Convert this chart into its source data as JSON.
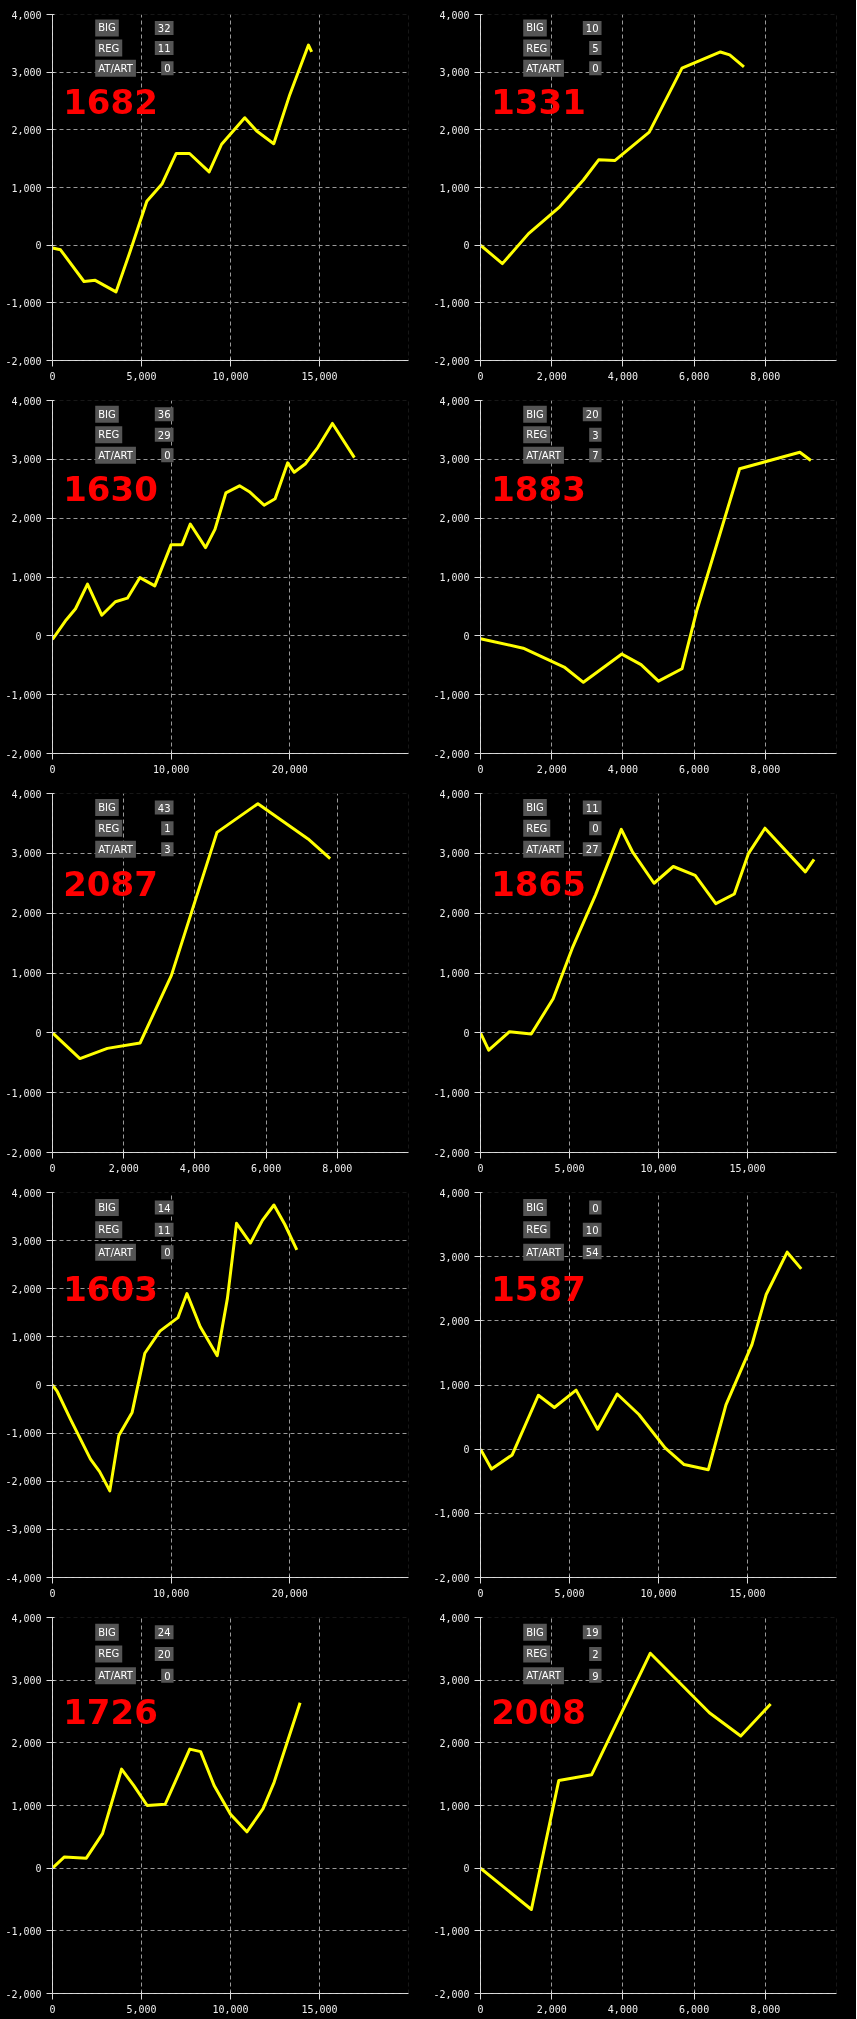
{
  "chart_data": [
    {
      "type": "line",
      "annotations": [
        "BIG",
        "32",
        "REG",
        "11",
        "AT/ART",
        "0",
        "1682"
      ],
      "xlim": [
        0,
        20000
      ],
      "ylim": [
        -2000,
        4000
      ],
      "xticks": [
        0,
        {
          "value": 5000,
          "label": "5,000"
        },
        {
          "value": 10000,
          "label": "10,000"
        },
        {
          "value": 15000,
          "label": "15,000"
        }
      ],
      "yticks": [
        {
          "value": -2000,
          "label": "-2,000"
        },
        {
          "value": -1000,
          "label": "-1,000"
        },
        0,
        {
          "value": 1000,
          "label": "1,000"
        },
        {
          "value": 2000,
          "label": "2,000"
        },
        {
          "value": 3000,
          "label": "3,000"
        },
        {
          "value": 4000,
          "label": "4,000"
        }
      ],
      "grid": true,
      "line_style": "solid",
      "series": [
        {
          "color": "#ffff00",
          "x": [
            0,
            450,
            1770,
            2400,
            3570,
            4350,
            5300,
            6150,
            6950,
            7700,
            8800,
            9500,
            10800,
            11470,
            12430,
            13330,
            14380,
            14560
          ],
          "values": [
            -50,
            -80,
            -630,
            -610,
            -810,
            -120,
            760,
            1060,
            1590,
            1590,
            1270,
            1750,
            2210,
            1980,
            1760,
            2610,
            3470,
            3350
          ]
        }
      ]
    },
    {
      "type": "line",
      "annotations": [
        "BIG",
        "10",
        "REG",
        "5",
        "AT/ART",
        "0",
        "1331"
      ],
      "xlim": [
        0,
        10000
      ],
      "ylim": [
        -2000,
        4000
      ],
      "xticks": [
        0,
        {
          "value": 2000,
          "label": "2,000"
        },
        {
          "value": 4000,
          "label": "4,000"
        },
        {
          "value": 6000,
          "label": "6,000"
        },
        {
          "value": 8000,
          "label": "8,000"
        }
      ],
      "yticks": [
        {
          "value": -2000,
          "label": "-2,000"
        },
        {
          "value": -1000,
          "label": "-1,000"
        },
        0,
        {
          "value": 1000,
          "label": "1,000"
        },
        {
          "value": 2000,
          "label": "2,000"
        },
        {
          "value": 3000,
          "label": "3,000"
        },
        {
          "value": 4000,
          "label": "4,000"
        }
      ],
      "grid": true,
      "line_style": "solid",
      "series": [
        {
          "color": "#ffff00",
          "x": [
            0,
            615,
            1350,
            2200,
            2890,
            3320,
            3780,
            4740,
            5660,
            6740,
            7000,
            7400
          ],
          "values": [
            0,
            -320,
            200,
            650,
            1130,
            1480,
            1470,
            1960,
            3070,
            3350,
            3300,
            3090
          ]
        }
      ]
    },
    {
      "type": "line",
      "annotations": [
        "BIG",
        "36",
        "REG",
        "29",
        "AT/ART",
        "0",
        "1630"
      ],
      "xlim": [
        0,
        30000
      ],
      "ylim": [
        -2000,
        4000
      ],
      "xticks": [
        0,
        {
          "value": 10000,
          "label": "10,000"
        },
        {
          "value": 20000,
          "label": "20,000"
        }
      ],
      "yticks": [
        {
          "value": -2000,
          "label": "-2,000"
        },
        {
          "value": -1000,
          "label": "-1,000"
        },
        0,
        {
          "value": 1000,
          "label": "1,000"
        },
        {
          "value": 2000,
          "label": "2,000"
        },
        {
          "value": 3000,
          "label": "3,000"
        },
        {
          "value": 4000,
          "label": "4,000"
        }
      ],
      "grid": true,
      "line_style": "solid",
      "series": [
        {
          "color": "#ffff00",
          "x": [
            0,
            1150,
            1940,
            2950,
            4150,
            5300,
            6310,
            7370,
            8620,
            10000,
            10920,
            11610,
            12900,
            13690,
            14610,
            15760,
            16590,
            17830,
            18760,
            19820,
            20370,
            21290,
            22350,
            23590,
            25440
          ],
          "values": [
            -60,
            270,
            460,
            880,
            350,
            580,
            640,
            990,
            850,
            1550,
            1550,
            1900,
            1500,
            1810,
            2430,
            2550,
            2450,
            2220,
            2330,
            2940,
            2780,
            2920,
            3200,
            3610,
            3030
          ]
        }
      ]
    },
    {
      "type": "line",
      "annotations": [
        "BIG",
        "20",
        "REG",
        "3",
        "AT/ART",
        "7",
        "1883"
      ],
      "xlim": [
        0,
        10000
      ],
      "ylim": [
        -2000,
        4000
      ],
      "xticks": [
        0,
        {
          "value": 2000,
          "label": "2,000"
        },
        {
          "value": 4000,
          "label": "4,000"
        },
        {
          "value": 6000,
          "label": "6,000"
        },
        {
          "value": 8000,
          "label": "8,000"
        }
      ],
      "yticks": [
        {
          "value": -2000,
          "label": "-2,000"
        },
        {
          "value": -1000,
          "label": "-1,000"
        },
        0,
        {
          "value": 1000,
          "label": "1,000"
        },
        {
          "value": 2000,
          "label": "2,000"
        },
        {
          "value": 3000,
          "label": "3,000"
        },
        {
          "value": 4000,
          "label": "4,000"
        }
      ],
      "grid": true,
      "line_style": "solid",
      "series": [
        {
          "color": "#ffff00",
          "x": [
            0,
            1200,
            2350,
            2890,
            3970,
            4510,
            5000,
            5660,
            6080,
            7280,
            8970,
            9280
          ],
          "values": [
            -50,
            -210,
            -530,
            -790,
            -310,
            -490,
            -770,
            -560,
            440,
            2840,
            3120,
            2980
          ]
        }
      ]
    },
    {
      "type": "line",
      "annotations": [
        "BIG",
        "43",
        "REG",
        "1",
        "AT/ART",
        "3",
        "2087"
      ],
      "xlim": [
        0,
        10000
      ],
      "ylim": [
        -2000,
        4000
      ],
      "xticks": [
        0,
        {
          "value": 2000,
          "label": "2,000"
        },
        {
          "value": 4000,
          "label": "4,000"
        },
        {
          "value": 6000,
          "label": "6,000"
        },
        {
          "value": 8000,
          "label": "8,000"
        }
      ],
      "yticks": [
        {
          "value": -2000,
          "label": "-2,000"
        },
        {
          "value": -1000,
          "label": "-1,000"
        },
        0,
        {
          "value": 1000,
          "label": "1,000"
        },
        {
          "value": 2000,
          "label": "2,000"
        },
        {
          "value": 3000,
          "label": "3,000"
        },
        {
          "value": 4000,
          "label": "4,000"
        }
      ],
      "grid": true,
      "line_style": "solid",
      "series": [
        {
          "color": "#ffff00",
          "x": [
            0,
            770,
            1540,
            2460,
            3340,
            4620,
            5770,
            7180,
            7800
          ],
          "values": [
            0,
            -430,
            -260,
            -170,
            960,
            3350,
            3830,
            3240,
            2910
          ]
        }
      ]
    },
    {
      "type": "line",
      "annotations": [
        "BIG",
        "11",
        "REG",
        "0",
        "AT/ART",
        "27",
        "1865"
      ],
      "xlim": [
        0,
        20000
      ],
      "ylim": [
        -2000,
        4000
      ],
      "xticks": [
        0,
        {
          "value": 5000,
          "label": "5,000"
        },
        {
          "value": 10000,
          "label": "10,000"
        },
        {
          "value": 15000,
          "label": "15,000"
        }
      ],
      "yticks": [
        {
          "value": -2000,
          "label": "-2,000"
        },
        {
          "value": -1000,
          "label": "-1,000"
        },
        0,
        {
          "value": 1000,
          "label": "1,000"
        },
        {
          "value": 2000,
          "label": "2,000"
        },
        {
          "value": 3000,
          "label": "3,000"
        },
        {
          "value": 4000,
          "label": "4,000"
        }
      ],
      "grid": true,
      "line_style": "solid",
      "series": [
        {
          "color": "#ffff00",
          "x": [
            0,
            460,
            1630,
            2850,
            4080,
            5150,
            6470,
            7910,
            8530,
            9750,
            10830,
            12060,
            13220,
            14260,
            15060,
            15980,
            18250,
            18740
          ],
          "values": [
            0,
            -290,
            20,
            -20,
            570,
            1410,
            2310,
            3400,
            3030,
            2500,
            2780,
            2630,
            2160,
            2320,
            3000,
            3420,
            2690,
            2900
          ]
        }
      ]
    },
    {
      "type": "line",
      "annotations": [
        "BIG",
        "14",
        "REG",
        "11",
        "AT/ART",
        "0",
        "1603"
      ],
      "xlim": [
        0,
        30000
      ],
      "ylim": [
        -4000,
        4000
      ],
      "xticks": [
        0,
        {
          "value": 10000,
          "label": "10,000"
        },
        {
          "value": 20000,
          "label": "20,000"
        }
      ],
      "yticks": [
        {
          "value": -4000,
          "label": "-4,000"
        },
        {
          "value": -3000,
          "label": "-3,000"
        },
        {
          "value": -2000,
          "label": "-2,000"
        },
        {
          "value": -1000,
          "label": "-1,000"
        },
        0,
        {
          "value": 1000,
          "label": "1,000"
        },
        {
          "value": 2000,
          "label": "2,000"
        },
        {
          "value": 3000,
          "label": "3,000"
        },
        {
          "value": 4000,
          "label": "4,000"
        }
      ],
      "grid": true,
      "line_style": "solid",
      "series": [
        {
          "color": "#ffff00",
          "x": [
            0,
            410,
            1530,
            3200,
            3970,
            4830,
            5590,
            6710,
            7780,
            9050,
            10570,
            11330,
            12450,
            13880,
            14740,
            15510,
            16680,
            17690,
            18660,
            19570,
            20590
          ],
          "values": [
            0,
            -140,
            -720,
            -1540,
            -1800,
            -2200,
            -1050,
            -570,
            660,
            1120,
            1400,
            1900,
            1210,
            610,
            1800,
            3360,
            2950,
            3420,
            3740,
            3340,
            2810
          ]
        }
      ]
    },
    {
      "type": "line",
      "annotations": [
        "BIG",
        "0",
        "REG",
        "10",
        "AT/ART",
        "54",
        "1587"
      ],
      "xlim": [
        0,
        20000
      ],
      "ylim": [
        -2000,
        4000
      ],
      "xticks": [
        0,
        {
          "value": 5000,
          "label": "5,000"
        },
        {
          "value": 10000,
          "label": "10,000"
        },
        {
          "value": 15000,
          "label": "15,000"
        }
      ],
      "yticks": [
        {
          "value": -2000,
          "label": "-2,000"
        },
        {
          "value": -1000,
          "label": "-1,000"
        },
        0,
        {
          "value": 1000,
          "label": "1,000"
        },
        {
          "value": 2000,
          "label": "2,000"
        },
        {
          "value": 3000,
          "label": "3,000"
        },
        {
          "value": 4000,
          "label": "4,000"
        }
      ],
      "grid": true,
      "line_style": "solid",
      "series": [
        {
          "color": "#ffff00",
          "x": [
            0,
            620,
            1780,
            3250,
            4150,
            5370,
            6580,
            7680,
            8900,
            10370,
            11440,
            12800,
            13790,
            15250,
            16050,
            17230,
            18020
          ],
          "values": [
            0,
            -310,
            -90,
            840,
            650,
            920,
            310,
            860,
            540,
            20,
            -240,
            -320,
            690,
            1630,
            2410,
            3070,
            2810
          ]
        }
      ]
    },
    {
      "type": "line",
      "annotations": [
        "BIG",
        "24",
        "REG",
        "20",
        "AT/ART",
        "0",
        "1726"
      ],
      "xlim": [
        0,
        20000
      ],
      "ylim": [
        -2000,
        4000
      ],
      "xticks": [
        0,
        {
          "value": 5000,
          "label": "5,000"
        },
        {
          "value": 10000,
          "label": "10,000"
        },
        {
          "value": 15000,
          "label": "15,000"
        }
      ],
      "yticks": [
        {
          "value": -2000,
          "label": "-2,000"
        },
        {
          "value": -1000,
          "label": "-1,000"
        },
        0,
        {
          "value": 1000,
          "label": "1,000"
        },
        {
          "value": 2000,
          "label": "2,000"
        },
        {
          "value": 3000,
          "label": "3,000"
        },
        {
          "value": 4000,
          "label": "4,000"
        }
      ],
      "grid": true,
      "line_style": "solid",
      "series": [
        {
          "color": "#ffff00",
          "x": [
            0,
            670,
            1900,
            2810,
            3880,
            4560,
            5320,
            6330,
            7710,
            8320,
            9080,
            10000,
            10920,
            11830,
            12450,
            13910
          ],
          "values": [
            0,
            180,
            160,
            550,
            1580,
            1320,
            1000,
            1020,
            1900,
            1860,
            1320,
            860,
            580,
            950,
            1370,
            2640
          ]
        }
      ]
    },
    {
      "type": "line",
      "annotations": [
        "BIG",
        "19",
        "REG",
        "2",
        "AT/ART",
        "9",
        "2008"
      ],
      "xlim": [
        0,
        10000
      ],
      "ylim": [
        -2000,
        4000
      ],
      "xticks": [
        0,
        {
          "value": 2000,
          "label": "2,000"
        },
        {
          "value": 4000,
          "label": "4,000"
        },
        {
          "value": 6000,
          "label": "6,000"
        },
        {
          "value": 8000,
          "label": "8,000"
        }
      ],
      "yticks": [
        {
          "value": -2000,
          "label": "-2,000"
        },
        {
          "value": -1000,
          "label": "-1,000"
        },
        0,
        {
          "value": 1000,
          "label": "1,000"
        },
        {
          "value": 2000,
          "label": "2,000"
        },
        {
          "value": 3000,
          "label": "3,000"
        },
        {
          "value": 4000,
          "label": "4,000"
        }
      ],
      "grid": true,
      "line_style": "solid",
      "series": [
        {
          "color": "#ffff00",
          "x": [
            0,
            1430,
            2200,
            3120,
            4770,
            6430,
            7310,
            8150
          ],
          "values": [
            0,
            -660,
            1400,
            1490,
            3430,
            2480,
            2110,
            2620
          ]
        }
      ]
    }
  ]
}
